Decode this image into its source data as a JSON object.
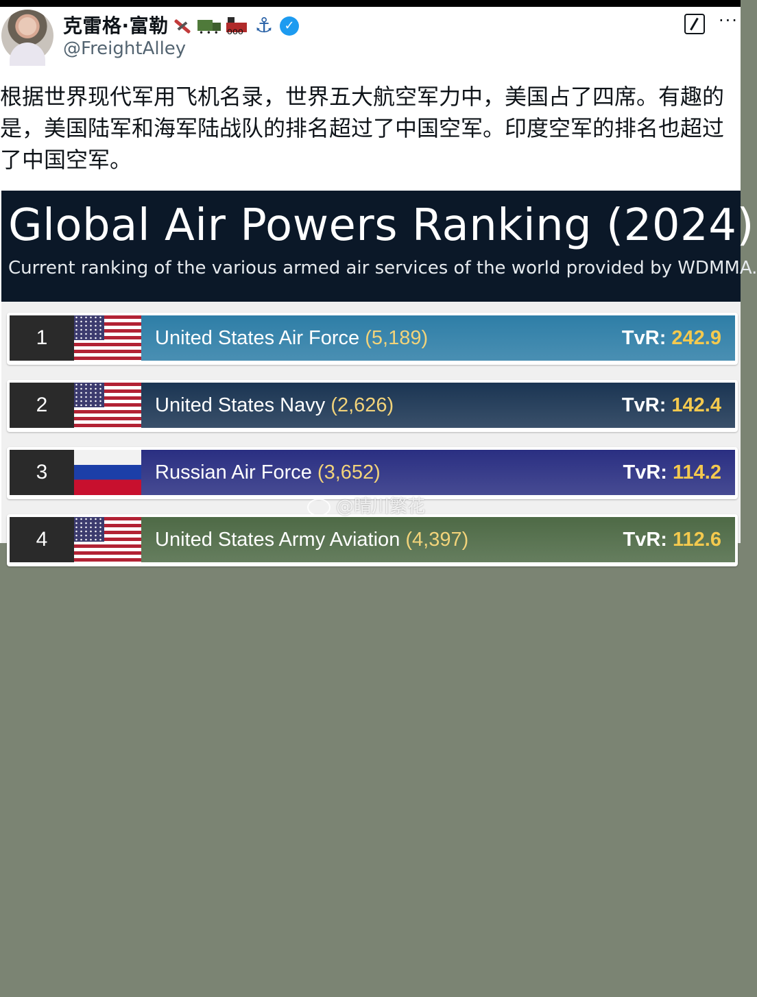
{
  "post": {
    "author_name": "克雷格·富勒",
    "author_emoji_icons": [
      "pickaxe-icon",
      "truck-icon",
      "train-icon",
      "anchor-icon"
    ],
    "verified": true,
    "handle": "@FreightAlley",
    "text": "根据世界现代军用飞机名录，世界五大航空军力中，美国占了四席。有趣的是，美国陆军和海军陆战队的排名超过了中国空军。印度空军的排名也超过了中国空军。"
  },
  "infographic": {
    "title": "Global Air Powers Ranking (2024)",
    "subtitle": "Current ranking of the various armed air services of the world provided by WDMMA.",
    "rows": [
      {
        "rank": "1",
        "flag": "us-flag-icon",
        "unit": "United States Air Force",
        "count": "(5,189)",
        "tvr_label": "TvR:",
        "tvr": "242.9",
        "color": "#2e7ea7"
      },
      {
        "rank": "2",
        "flag": "us-flag-icon",
        "unit": "United States Navy",
        "count": "(2,626)",
        "tvr_label": "TvR:",
        "tvr": "142.4",
        "color": "#1b3553"
      },
      {
        "rank": "3",
        "flag": "russia-flag-icon",
        "unit": "Russian Air Force",
        "count": "(3,652)",
        "tvr_label": "TvR:",
        "tvr": "114.2",
        "color": "#2a2f82"
      },
      {
        "rank": "4",
        "flag": "us-flag-icon",
        "unit": "United States Army Aviation",
        "count": "(4,397)",
        "tvr_label": "TvR:",
        "tvr": "112.6",
        "color": "#4e6a46"
      }
    ]
  },
  "watermark": "@晴川繁花",
  "colors": {
    "background": "#7b8473",
    "banner": "#0b1828",
    "verified": "#1d9bf0"
  }
}
